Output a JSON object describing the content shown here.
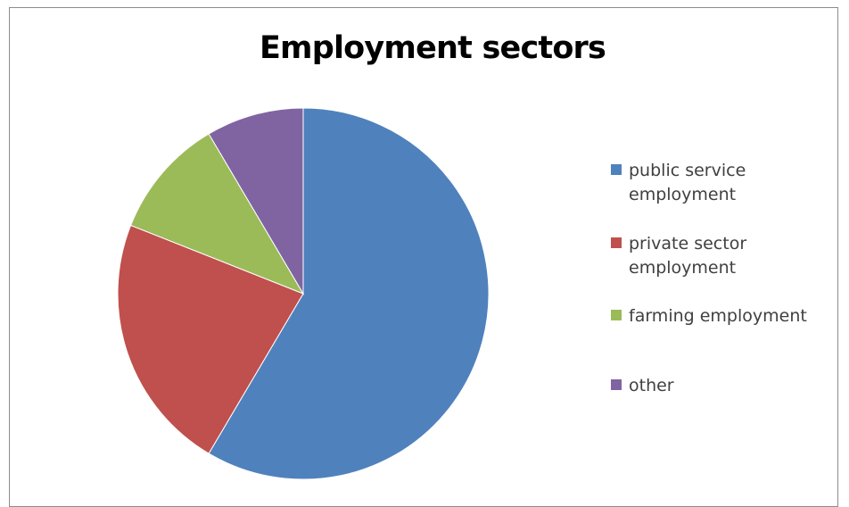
{
  "chart_data": {
    "type": "pie",
    "title": "Employment sectors",
    "categories": [
      "public service employment",
      "private sector employment",
      "farming employment",
      "other"
    ],
    "values": [
      58.5,
      22.5,
      10.5,
      8.5
    ],
    "colors": [
      "#4f81bd",
      "#c0504d",
      "#9bbb59",
      "#8064a2"
    ],
    "legend_position": "right"
  },
  "legend": {
    "items": [
      {
        "label": "public service employment",
        "color": "#4f81bd"
      },
      {
        "label": "private sector employment",
        "color": "#c0504d"
      },
      {
        "label": "farming employment",
        "color": "#9bbb59"
      },
      {
        "label": "other",
        "color": "#8064a2"
      }
    ]
  }
}
